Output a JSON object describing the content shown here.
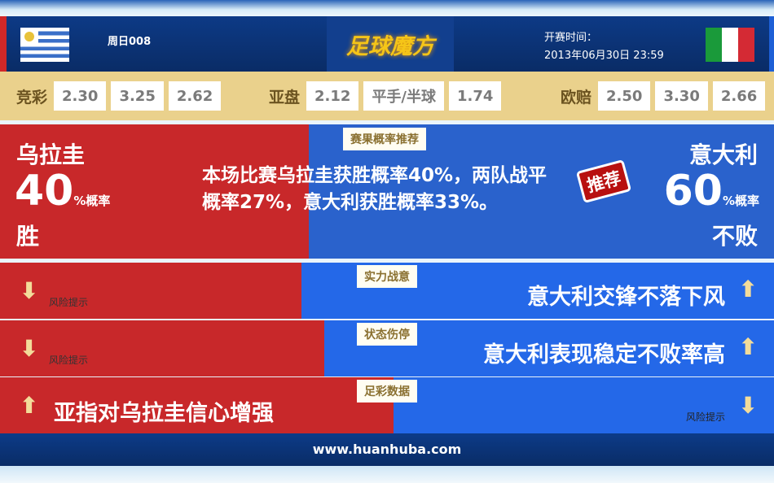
{
  "header": {
    "match_no": "周日008",
    "logo": "足球魔方",
    "kickoff_label": "开赛时间：",
    "kickoff_time": "2013年06月30日 23:59",
    "home_flag": "uruguay-flag",
    "away_flag": "italy-flag"
  },
  "odds": {
    "jingcai": {
      "label": "竞彩",
      "values": [
        "2.30",
        "3.25",
        "2.62"
      ]
    },
    "asian": {
      "label": "亚盘",
      "values": [
        "2.12",
        "平手/半球",
        "1.74"
      ]
    },
    "euro": {
      "label": "欧赔",
      "values": [
        "2.50",
        "3.30",
        "2.66"
      ]
    }
  },
  "prediction": {
    "tag": "赛果概率推荐",
    "home": {
      "team": "乌拉圭",
      "pct": "40",
      "pct_unit": "%概率",
      "result": "胜"
    },
    "away": {
      "team": "意大利",
      "pct": "60",
      "pct_unit": "%概率",
      "result": "不败"
    },
    "description": "本场比赛乌拉圭获胜概率40%，两队战平概率27%，意大利获胜概率33%。",
    "recommend": "推荐",
    "home_share": 40
  },
  "rows": [
    {
      "tag": "实力战意",
      "home_text": "",
      "home_arrow": "down",
      "home_risk": "风险提示",
      "away_text": "意大利交锋不落下风",
      "away_arrow": "up"
    },
    {
      "tag": "状态伤停",
      "home_text": "",
      "home_arrow": "down",
      "home_risk": "风险提示",
      "away_text": "意大利表现稳定不败率高",
      "away_arrow": "up"
    },
    {
      "tag": "足彩数据",
      "home_text": "亚指对乌拉圭信心增强",
      "home_arrow": "up",
      "away_risk": "风险提示",
      "away_arrow": "down"
    }
  ],
  "colors": {
    "home": "#c8282a",
    "away": "#2468e8",
    "header": "#0d3a86",
    "odds_bg": "#ead18c"
  },
  "footer": {
    "url": "www.huanhuba.com"
  }
}
